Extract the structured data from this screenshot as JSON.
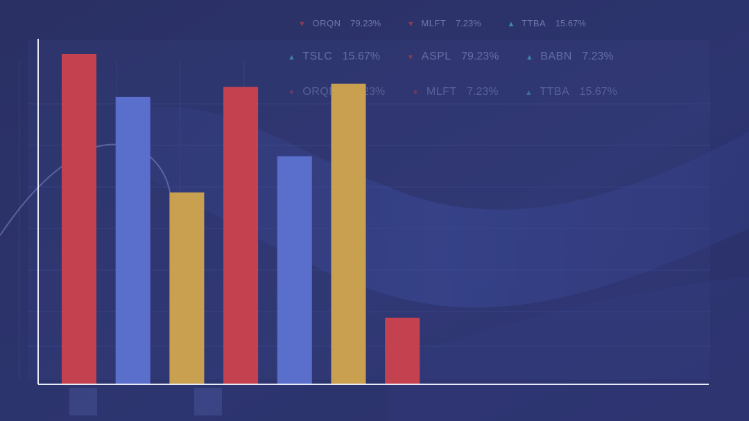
{
  "colors": {
    "background": "#2b3268",
    "red": "#c44250",
    "blue": "#5a6fcc",
    "gold": "#c9a050",
    "axis": "#e8ecf8",
    "ticker_text": "#8a93c6",
    "up": "#49b3c9",
    "down": "#b4404e"
  },
  "ticker": [
    [
      {
        "symbol": "ORQN",
        "value": "79.23%",
        "dir": "down",
        "arrow_icon": "arrow-down-icon"
      },
      {
        "symbol": "MLFT",
        "value": "7.23%",
        "dir": "down",
        "arrow_icon": "arrow-down-icon"
      },
      {
        "symbol": "TTBA",
        "value": "15.67%",
        "dir": "up",
        "arrow_icon": "arrow-up-icon"
      }
    ],
    [
      {
        "symbol": "TSLC",
        "value": "15.67%",
        "dir": "up",
        "arrow_icon": "arrow-up-icon"
      },
      {
        "symbol": "ASPL",
        "value": "79.23%",
        "dir": "down",
        "arrow_icon": "arrow-down-icon"
      },
      {
        "symbol": "BABN",
        "value": "7.23%",
        "dir": "up",
        "arrow_icon": "arrow-up-icon"
      }
    ],
    [
      {
        "symbol": "ORQN",
        "value": "79.23%",
        "dir": "down",
        "arrow_icon": "arrow-down-icon"
      },
      {
        "symbol": "MLFT",
        "value": "7.23%",
        "dir": "down",
        "arrow_icon": "arrow-down-icon"
      },
      {
        "symbol": "TTBA",
        "value": "15.67%",
        "dir": "up",
        "arrow_icon": "arrow-up-icon"
      }
    ]
  ],
  "chart_data": {
    "type": "bar",
    "title": "",
    "xlabel": "",
    "ylabel": "",
    "ylim": [
      0,
      100
    ],
    "grid": false,
    "legend": false,
    "values": [
      100,
      87,
      58,
      90,
      69,
      91,
      20
    ],
    "bar_colors": [
      "red",
      "blue",
      "gold",
      "red",
      "blue",
      "gold",
      "red"
    ]
  }
}
